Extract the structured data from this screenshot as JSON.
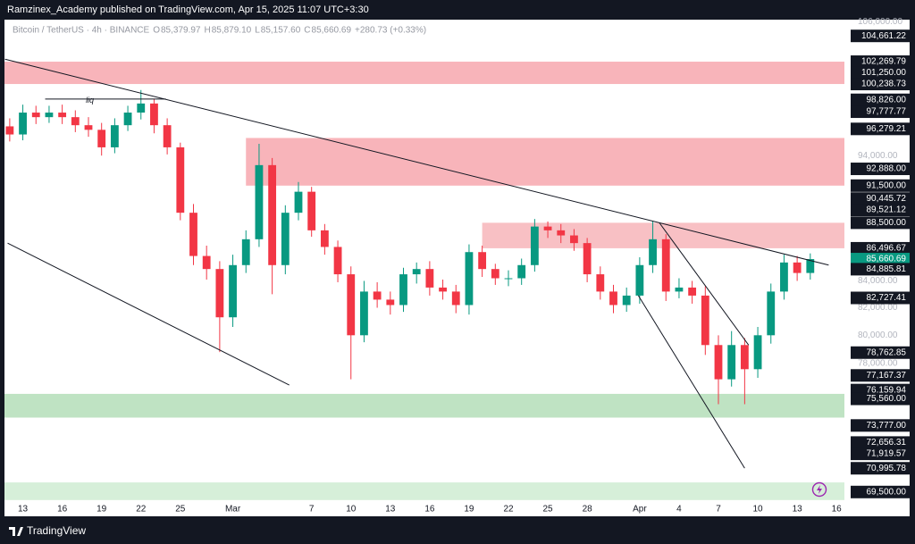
{
  "header": {
    "publisher": "Ramzinex_Academy published on TradingView.com, Apr 15, 2025 11:07 UTC+3:30",
    "symbol": "Bitcoin / TetherUS · 4h · BINANCE",
    "ohlc": [
      {
        "key": "O",
        "value": "85,379.97"
      },
      {
        "key": "H",
        "value": "85,879.10"
      },
      {
        "key": "L",
        "value": "85,157.60"
      },
      {
        "key": "C",
        "value": "85,660.69"
      }
    ],
    "change": "+280.73 (+0.33%)"
  },
  "footer": {
    "brand": "TradingView"
  },
  "chart_data": {
    "type": "candlestick",
    "log_scale": true,
    "up_color": "#089981",
    "down_color": "#f23645",
    "xlim": [
      -1.4,
      62.6
    ],
    "ylim": [
      68000,
      106200
    ],
    "xticks": [
      {
        "value": 0,
        "label": "13"
      },
      {
        "value": 3,
        "label": "16"
      },
      {
        "value": 6,
        "label": "19"
      },
      {
        "value": 9,
        "label": "22"
      },
      {
        "value": 12,
        "label": "25"
      },
      {
        "value": 16,
        "label": "Mar"
      },
      {
        "value": 22,
        "label": "7"
      },
      {
        "value": 25,
        "label": "10"
      },
      {
        "value": 28,
        "label": "13"
      },
      {
        "value": 31,
        "label": "16"
      },
      {
        "value": 34,
        "label": "19"
      },
      {
        "value": 37,
        "label": "22"
      },
      {
        "value": 40,
        "label": "25"
      },
      {
        "value": 43,
        "label": "28"
      },
      {
        "value": 47,
        "label": "Apr"
      },
      {
        "value": 50,
        "label": "4"
      },
      {
        "value": 53,
        "label": "7"
      },
      {
        "value": 56,
        "label": "10"
      },
      {
        "value": 59,
        "label": "13"
      },
      {
        "value": 62,
        "label": "16"
      }
    ],
    "yticks": [
      {
        "value": 106000,
        "label": "106,000.00"
      },
      {
        "value": 94000,
        "label": "94,000.00"
      },
      {
        "value": 84000,
        "label": "84,000.00"
      },
      {
        "value": 82000,
        "label": "82,000.00"
      },
      {
        "value": 80000,
        "label": "80,000.00"
      },
      {
        "value": 78000,
        "label": "78,000.00"
      }
    ],
    "x": [
      -1,
      0,
      1,
      2,
      3,
      4,
      5,
      6,
      7,
      8,
      9,
      10,
      11,
      12,
      13,
      14,
      15,
      16,
      17,
      18,
      19,
      20,
      21,
      22,
      23,
      24,
      25,
      26,
      27,
      28,
      29,
      30,
      31,
      32,
      33,
      34,
      35,
      36,
      37,
      38,
      39,
      40,
      41,
      42,
      43,
      44,
      45,
      46,
      47,
      48,
      49,
      50,
      51,
      52,
      53,
      54,
      55,
      56,
      57,
      58,
      59,
      60
    ],
    "open": [
      96500,
      95800,
      97700,
      97300,
      97700,
      97300,
      96600,
      96200,
      94700,
      96600,
      97700,
      98500,
      96600,
      94700,
      89300,
      85900,
      84900,
      81300,
      85200,
      87200,
      93200,
      85200,
      89300,
      91000,
      87900,
      86600,
      84500,
      80000,
      83200,
      82600,
      82200,
      84500,
      84900,
      83500,
      83200,
      82200,
      86200,
      84900,
      84200,
      84200,
      85200,
      88200,
      87900,
      87500,
      86900,
      84500,
      83200,
      82200,
      82900,
      85200,
      87200,
      83200,
      83500,
      82900,
      79300,
      76900,
      79300,
      77600,
      80000,
      83200,
      85400,
      84600
    ],
    "high": [
      97200,
      98400,
      98300,
      98300,
      98400,
      97900,
      97300,
      96800,
      97200,
      98300,
      99700,
      98900,
      97200,
      95100,
      90000,
      86700,
      85500,
      86000,
      87900,
      95000,
      93800,
      89900,
      91800,
      91400,
      88400,
      87100,
      85100,
      84000,
      83900,
      83200,
      85000,
      85400,
      85500,
      84100,
      83700,
      86800,
      86700,
      85300,
      84800,
      85700,
      88800,
      88600,
      88400,
      88000,
      87300,
      85100,
      83700,
      83500,
      85800,
      88600,
      87600,
      84200,
      84000,
      83600,
      80000,
      80300,
      79800,
      80600,
      83800,
      86000,
      85900,
      86100
    ],
    "low": [
      95200,
      95300,
      96700,
      96800,
      96700,
      96000,
      95600,
      94000,
      94200,
      96100,
      97100,
      95900,
      94100,
      88700,
      85200,
      84100,
      78800,
      80600,
      84600,
      86600,
      83000,
      84500,
      88700,
      87400,
      86000,
      83900,
      76900,
      79500,
      82000,
      81500,
      81700,
      83800,
      82900,
      82600,
      81600,
      81500,
      84300,
      83700,
      83600,
      83700,
      84700,
      87300,
      86900,
      86300,
      83900,
      82600,
      81600,
      81700,
      82300,
      84600,
      82500,
      82700,
      82300,
      78600,
      75200,
      76400,
      75200,
      77000,
      79400,
      82600,
      84000,
      84100
    ],
    "close": [
      95800,
      97700,
      97300,
      97700,
      97300,
      96600,
      96200,
      94700,
      96600,
      97700,
      98500,
      96600,
      94700,
      89300,
      85900,
      84900,
      81300,
      85200,
      87200,
      93200,
      85200,
      89300,
      91000,
      87900,
      86600,
      84500,
      80000,
      83200,
      82600,
      82200,
      84500,
      84900,
      83500,
      83200,
      82200,
      86200,
      84900,
      84200,
      84200,
      85200,
      88200,
      87900,
      87500,
      86900,
      84500,
      83200,
      82200,
      82900,
      85200,
      87200,
      83200,
      83500,
      82900,
      79300,
      76900,
      79300,
      77600,
      80000,
      83200,
      85400,
      84600,
      85660.69
    ],
    "zones": [
      {
        "x0": -1.4,
        "low": 100238.73,
        "high": 102269.79,
        "color": "#f8b4ba"
      },
      {
        "x0": 17,
        "low": 91500,
        "high": 95500,
        "color": "#f8b4ba"
      },
      {
        "x0": 35,
        "low": 86496.67,
        "high": 88500,
        "color": "#f8c0c4"
      },
      {
        "x0": -1.4,
        "low": 74300,
        "high": 75900,
        "color": "#bfe3c3"
      },
      {
        "x0": -1.4,
        "low": 69000,
        "high": 70100,
        "color": "#d6efd9"
      }
    ],
    "trendlines": [
      {
        "x": [
          -1.36,
          61.4
        ],
        "y": [
          102500,
          85200
        ]
      },
      {
        "x": [
          -1.16,
          20.3
        ],
        "y": [
          86900,
          76500
        ]
      },
      {
        "x": [
          48.5,
          55.3
        ],
        "y": [
          88500,
          79300
        ]
      },
      {
        "x": [
          46.9,
          55.0
        ],
        "y": [
          82900,
          71000
        ]
      },
      {
        "x": [
          1.7,
          10.9
        ],
        "y": [
          98900,
          98900
        ]
      }
    ],
    "annotations": [
      {
        "text": "liq",
        "x": 4.8,
        "y": 98900
      }
    ],
    "price_labels": [
      {
        "value": 104661.22,
        "label": "104,661.22"
      },
      {
        "value": 102269.79,
        "label": "102,269.79"
      },
      {
        "value": 101250,
        "label": "101,250.00"
      },
      {
        "value": 100238.73,
        "label": "100,238.73"
      },
      {
        "value": 98826,
        "label": "98,826.00"
      },
      {
        "value": 97777.77,
        "label": "97,777.77"
      },
      {
        "value": 96279.21,
        "label": "96,279.21"
      },
      {
        "value": 92888,
        "label": "92,888.00"
      },
      {
        "value": 91500,
        "label": "91,500.00"
      },
      {
        "value": 90445.72,
        "label": "90,445.72"
      },
      {
        "value": 89521.12,
        "label": "89,521.12"
      },
      {
        "value": 88500,
        "label": "88,500.00"
      },
      {
        "value": 86496.67,
        "label": "86,496.67"
      },
      {
        "value": 85660.69,
        "label": "85,660.69",
        "color": "#089981"
      },
      {
        "value": 84885.81,
        "label": "84,885.81"
      },
      {
        "value": 82727.41,
        "label": "82,727.41"
      },
      {
        "value": 78762.85,
        "label": "78,762.85"
      },
      {
        "value": 77167.37,
        "label": "77,167.37"
      },
      {
        "value": 76159.94,
        "label": "76,159.94"
      },
      {
        "value": 75560,
        "label": "75,560.00"
      },
      {
        "value": 73777,
        "label": "73,777.00"
      },
      {
        "value": 72656.31,
        "label": "72,656.31"
      },
      {
        "value": 71919.57,
        "label": "71,919.57"
      },
      {
        "value": 70995.78,
        "label": "70,995.78"
      },
      {
        "value": 69500,
        "label": "69,500.00"
      }
    ]
  }
}
